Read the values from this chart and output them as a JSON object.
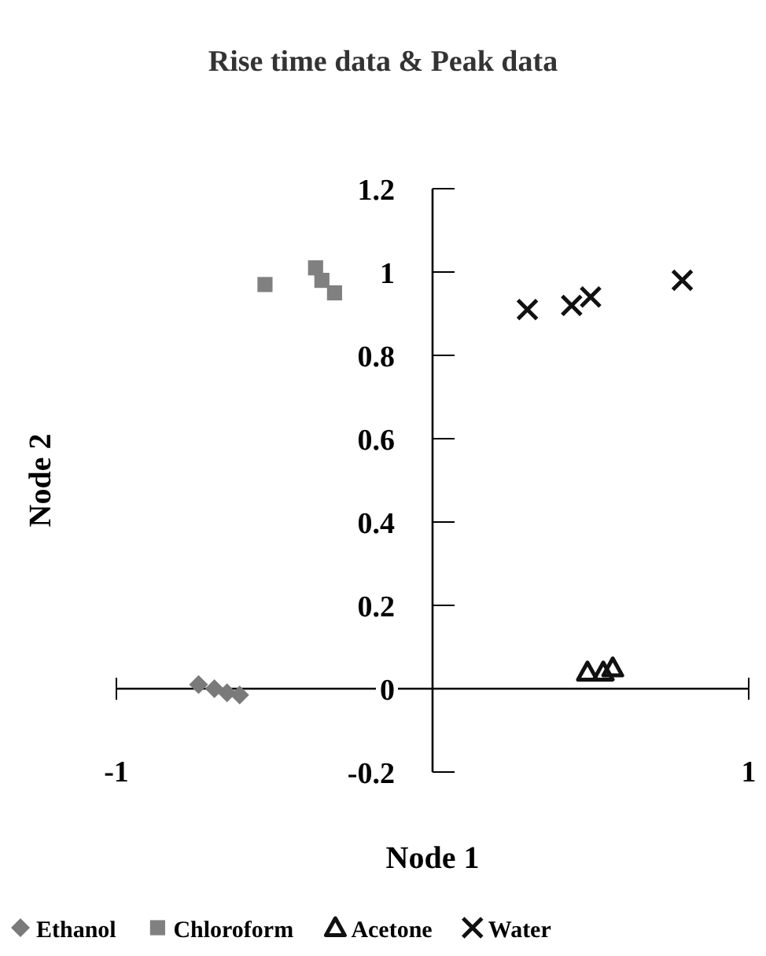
{
  "chart_data": {
    "type": "scatter",
    "title": "Rise time data & Peak data",
    "xlabel": "Node 1",
    "ylabel": "Node 2",
    "xlim": [
      -1,
      1
    ],
    "xticks": [
      -1,
      1
    ],
    "ylim": [
      -0.2,
      1.2
    ],
    "yticks": [
      -0.2,
      0,
      0.2,
      0.4,
      0.6,
      0.8,
      1,
      1.2
    ],
    "grid": false,
    "legend": "bottom",
    "series": [
      {
        "name": "Ethanol",
        "color": "#7a7a7a",
        "marker": "diamond",
        "x": [
          -0.74,
          -0.69,
          -0.65,
          -0.61
        ],
        "values": [
          0.01,
          0,
          -0.01,
          -0.015
        ]
      },
      {
        "name": "Chloroform",
        "color": "#808080",
        "marker": "square",
        "x": [
          -0.53,
          -0.37,
          -0.35,
          -0.31
        ],
        "values": [
          0.97,
          1.01,
          0.98,
          0.95
        ]
      },
      {
        "name": "Acetone",
        "color": "#111111",
        "marker": "triangle",
        "x": [
          0.49,
          0.54,
          0.57
        ],
        "values": [
          0.04,
          0.04,
          0.05
        ]
      },
      {
        "name": "Water",
        "color": "#111111",
        "marker": "cross",
        "x": [
          0.3,
          0.44,
          0.5,
          0.79
        ],
        "values": [
          0.91,
          0.92,
          0.94,
          0.98
        ]
      }
    ]
  }
}
